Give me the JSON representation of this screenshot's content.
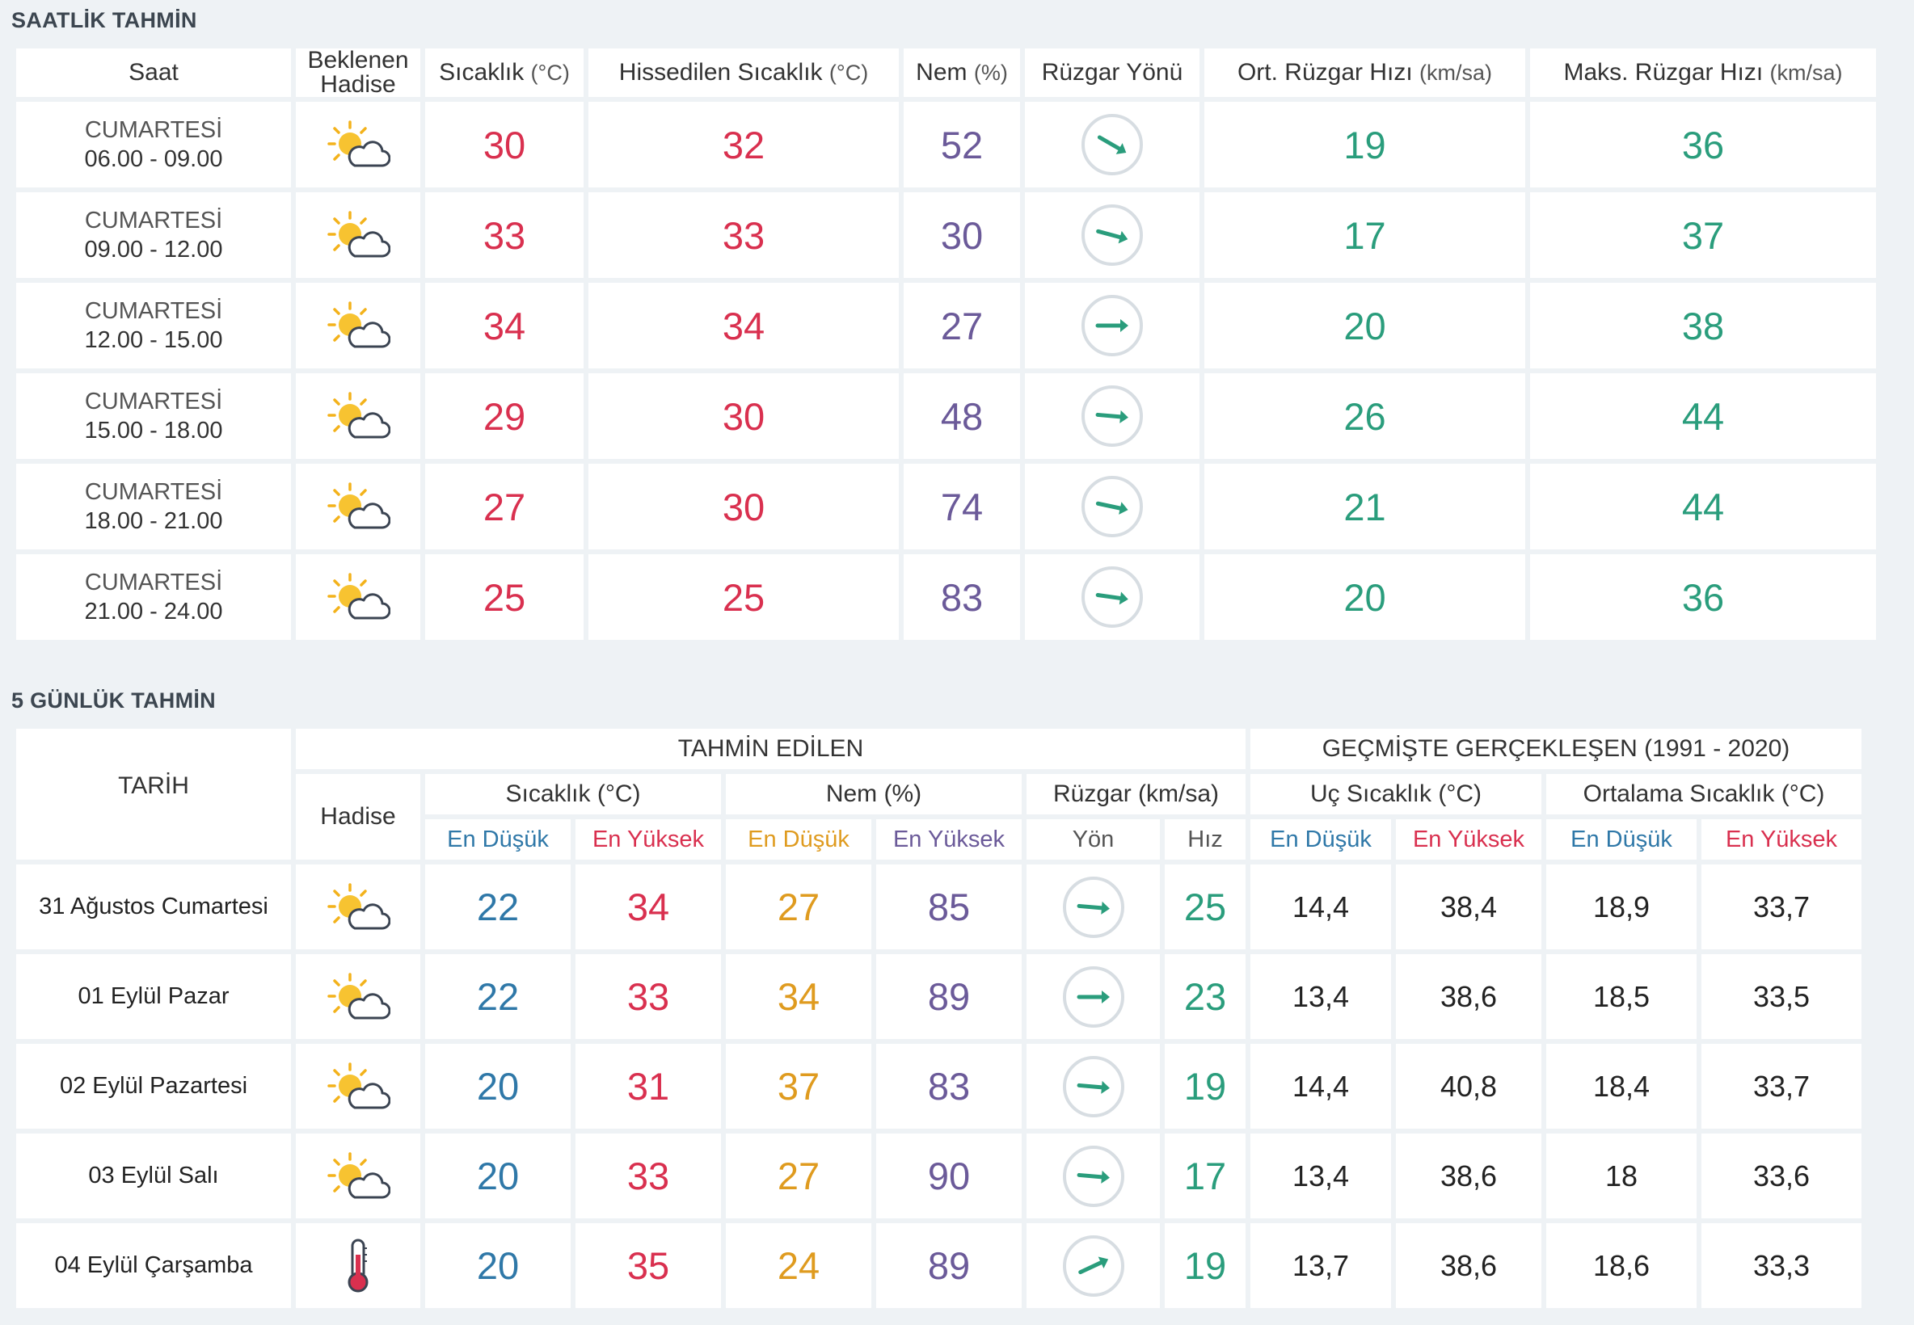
{
  "hourly": {
    "title": "SAATLİK TAHMİN",
    "headers": {
      "saat": "Saat",
      "beklenen_1": "Beklenen",
      "beklenen_2": "Hadise",
      "sicaklik": "Sıcaklık",
      "sicaklik_unit": "(°C)",
      "hissedilen": "Hissedilen Sıcaklık",
      "hissedilen_unit": "(°C)",
      "nem": "Nem",
      "nem_unit": "(%)",
      "ruzgar_yonu": "Rüzgar Yönü",
      "ort_ruzgar": "Ort. Rüzgar Hızı",
      "ort_ruzgar_unit": "(km/sa)",
      "maks_ruzgar": "Maks. Rüzgar Hızı",
      "maks_ruzgar_unit": "(km/sa)"
    },
    "rows": [
      {
        "day": "CUMARTESİ",
        "time": "06.00 - 09.00",
        "icon": "partly-sunny-icon",
        "temp": "30",
        "feels": "32",
        "humidity": "52",
        "wind_dir_deg": 30,
        "avg_wind": "19",
        "max_wind": "36"
      },
      {
        "day": "CUMARTESİ",
        "time": "09.00 - 12.00",
        "icon": "partly-sunny-icon",
        "temp": "33",
        "feels": "33",
        "humidity": "30",
        "wind_dir_deg": 15,
        "avg_wind": "17",
        "max_wind": "37"
      },
      {
        "day": "CUMARTESİ",
        "time": "12.00 - 15.00",
        "icon": "partly-sunny-icon",
        "temp": "34",
        "feels": "34",
        "humidity": "27",
        "wind_dir_deg": 0,
        "avg_wind": "20",
        "max_wind": "38"
      },
      {
        "day": "CUMARTESİ",
        "time": "15.00 - 18.00",
        "icon": "partly-sunny-icon",
        "temp": "29",
        "feels": "30",
        "humidity": "48",
        "wind_dir_deg": 5,
        "avg_wind": "26",
        "max_wind": "44"
      },
      {
        "day": "CUMARTESİ",
        "time": "18.00 - 21.00",
        "icon": "partly-sunny-icon",
        "temp": "27",
        "feels": "30",
        "humidity": "74",
        "wind_dir_deg": 12,
        "avg_wind": "21",
        "max_wind": "44"
      },
      {
        "day": "CUMARTESİ",
        "time": "21.00 - 24.00",
        "icon": "partly-sunny-icon",
        "temp": "25",
        "feels": "25",
        "humidity": "83",
        "wind_dir_deg": 8,
        "avg_wind": "20",
        "max_wind": "36"
      }
    ]
  },
  "daily": {
    "title": "5 GÜNLÜK TAHMİN",
    "headers": {
      "tarih": "TARİH",
      "tahmin_edilen": "TAHMİN EDİLEN",
      "gecmiste": "GEÇMİŞTE GERÇEKLEŞEN (1991 - 2020)",
      "hadise": "Hadise",
      "sicaklik": "Sıcaklık (°C)",
      "nem": "Nem (%)",
      "ruzgar": "Rüzgar (km/sa)",
      "uc_sicaklik": "Uç Sıcaklık (°C)",
      "ortalama_sicaklik": "Ortalama Sıcaklık (°C)",
      "en_dusuk": "En Düşük",
      "en_yuksek": "En Yüksek",
      "yon": "Yön",
      "hiz": "Hız"
    },
    "rows": [
      {
        "date": "31 Ağustos Cumartesi",
        "icon": "partly-sunny-icon",
        "temp_min": "22",
        "temp_max": "34",
        "hum_min": "27",
        "hum_max": "85",
        "wind_dir_deg": 5,
        "wind_speed": "25",
        "ext_min": "14,4",
        "ext_max": "38,4",
        "avg_min": "18,9",
        "avg_max": "33,7"
      },
      {
        "date": "01 Eylül Pazar",
        "icon": "partly-sunny-icon",
        "temp_min": "22",
        "temp_max": "33",
        "hum_min": "34",
        "hum_max": "89",
        "wind_dir_deg": 0,
        "wind_speed": "23",
        "ext_min": "13,4",
        "ext_max": "38,6",
        "avg_min": "18,5",
        "avg_max": "33,5"
      },
      {
        "date": "02 Eylül Pazartesi",
        "icon": "partly-sunny-icon",
        "temp_min": "20",
        "temp_max": "31",
        "hum_min": "37",
        "hum_max": "83",
        "wind_dir_deg": 5,
        "wind_speed": "19",
        "ext_min": "14,4",
        "ext_max": "40,8",
        "avg_min": "18,4",
        "avg_max": "33,7"
      },
      {
        "date": "03 Eylül Salı",
        "icon": "partly-sunny-icon",
        "temp_min": "20",
        "temp_max": "33",
        "hum_min": "27",
        "hum_max": "90",
        "wind_dir_deg": 5,
        "wind_speed": "17",
        "ext_min": "13,4",
        "ext_max": "38,6",
        "avg_min": "18",
        "avg_max": "33,6"
      },
      {
        "date": "04 Eylül Çarşamba",
        "icon": "thermometer-icon",
        "temp_min": "20",
        "temp_max": "35",
        "hum_min": "24",
        "hum_max": "89",
        "wind_dir_deg": -25,
        "wind_speed": "19",
        "ext_min": "13,7",
        "ext_max": "38,6",
        "avg_min": "18,6",
        "avg_max": "33,3"
      }
    ]
  },
  "colors": {
    "temp": "#d9304f",
    "humidity": "#6b5a99",
    "wind": "#2a9d7c",
    "low": "#2f78a8",
    "hum_low": "#df9b1f"
  }
}
